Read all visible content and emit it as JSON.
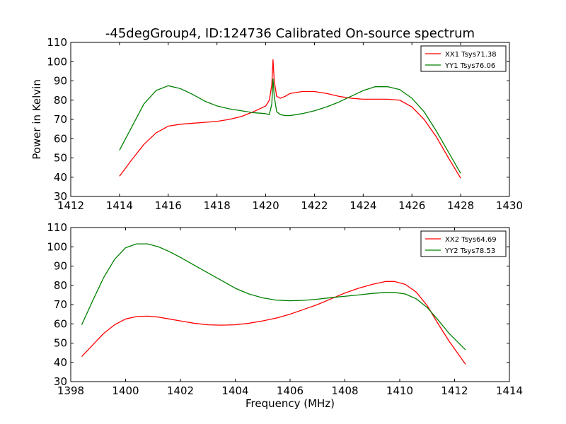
{
  "chart_data": [
    {
      "type": "line",
      "title": "-45degGroup4, ID:124736 Calibrated On-source spectrum",
      "xlabel": "",
      "ylabel": "Power in Kelvin",
      "xlim": [
        1412,
        1430
      ],
      "ylim": [
        30,
        110
      ],
      "xticks": [
        "1412",
        "1414",
        "1416",
        "1418",
        "1420",
        "1422",
        "1424",
        "1426",
        "1428",
        "1430"
      ],
      "yticks": [
        "30",
        "40",
        "50",
        "60",
        "70",
        "80",
        "90",
        "100",
        "110"
      ],
      "legend_position": "top-right",
      "series": [
        {
          "name": "XX1 Tsys71.38",
          "color": "#ff0000",
          "x": [
            1414,
            1414.5,
            1415,
            1415.5,
            1416,
            1416.5,
            1417,
            1417.5,
            1418,
            1418.5,
            1419,
            1419.5,
            1420,
            1420.15,
            1420.25,
            1420.3,
            1420.35,
            1420.45,
            1420.6,
            1420.8,
            1421,
            1421.5,
            1422,
            1422.5,
            1423,
            1423.5,
            1424,
            1424.5,
            1425,
            1425.5,
            1426,
            1426.5,
            1427,
            1427.5,
            1428
          ],
          "y": [
            40.5,
            49,
            57,
            63,
            66.5,
            67.5,
            68,
            68.5,
            69,
            70,
            71.5,
            74,
            77,
            80,
            88,
            101,
            90,
            82,
            81,
            82,
            83.5,
            84.5,
            84.5,
            83.5,
            82,
            81,
            80.5,
            80.5,
            80.5,
            80,
            76.5,
            70,
            61,
            50,
            39.5
          ]
        },
        {
          "name": "YY1 Tsys76.06",
          "color": "#008000",
          "x": [
            1414,
            1414.5,
            1415,
            1415.5,
            1416,
            1416.5,
            1417,
            1417.5,
            1418,
            1418.5,
            1419,
            1419.5,
            1420,
            1420.15,
            1420.25,
            1420.3,
            1420.35,
            1420.45,
            1420.6,
            1420.8,
            1421,
            1421.5,
            1422,
            1422.5,
            1423,
            1423.5,
            1424,
            1424.5,
            1425,
            1425.5,
            1426,
            1426.5,
            1427,
            1427.5,
            1428
          ],
          "y": [
            54,
            66,
            78,
            85,
            87.5,
            86,
            83,
            79.5,
            77,
            75.5,
            74.5,
            73.5,
            73,
            72.5,
            78,
            91,
            82,
            74,
            72.5,
            72,
            72,
            73,
            74.5,
            76.5,
            79,
            82,
            85,
            87,
            87,
            85.5,
            81,
            74,
            64,
            53,
            42
          ]
        }
      ]
    },
    {
      "type": "line",
      "title": "",
      "xlabel": "Frequency (MHz)",
      "ylabel": "",
      "xlim": [
        1398,
        1414
      ],
      "ylim": [
        30,
        110
      ],
      "xticks": [
        "1398",
        "1400",
        "1402",
        "1404",
        "1406",
        "1408",
        "1410",
        "1412",
        "1414"
      ],
      "yticks": [
        "30",
        "40",
        "50",
        "60",
        "70",
        "80",
        "90",
        "100",
        "110"
      ],
      "legend_position": "top-right",
      "series": [
        {
          "name": "XX2 Tsys64.69",
          "color": "#ff0000",
          "x": [
            1398.4,
            1398.8,
            1399.2,
            1399.6,
            1400,
            1400.4,
            1400.8,
            1401.2,
            1401.6,
            1402,
            1402.5,
            1403,
            1403.5,
            1404,
            1404.5,
            1405,
            1405.5,
            1406,
            1406.5,
            1407,
            1407.5,
            1408,
            1408.5,
            1409,
            1409.5,
            1409.8,
            1410.2,
            1410.6,
            1411,
            1411.4,
            1411.8,
            1412.4
          ],
          "y": [
            43,
            49,
            55,
            59.5,
            62.5,
            63.8,
            64,
            63.5,
            62.5,
            61.5,
            60.3,
            59.5,
            59.3,
            59.5,
            60.3,
            61.5,
            63,
            65,
            67.5,
            70,
            73,
            76,
            78.5,
            80.5,
            82,
            82,
            80.5,
            76.5,
            69.5,
            60,
            51,
            39
          ]
        },
        {
          "name": "YY2 Tsys78.53",
          "color": "#008000",
          "x": [
            1398.4,
            1398.8,
            1399.2,
            1399.6,
            1400,
            1400.4,
            1400.8,
            1401.2,
            1401.6,
            1402,
            1402.5,
            1403,
            1403.5,
            1404,
            1404.5,
            1405,
            1405.5,
            1406,
            1406.5,
            1407,
            1407.5,
            1408,
            1408.5,
            1409,
            1409.5,
            1409.8,
            1410.2,
            1410.6,
            1411,
            1411.4,
            1411.8,
            1412.4
          ],
          "y": [
            59.5,
            72,
            84,
            93.5,
            99.5,
            101.5,
            101.5,
            100,
            97.5,
            94.5,
            90.5,
            86.5,
            82.5,
            78.5,
            75.5,
            73.5,
            72.3,
            72,
            72.2,
            72.8,
            73.6,
            74.3,
            75,
            75.8,
            76.3,
            76.3,
            75.5,
            73,
            68.5,
            62,
            55,
            46.5
          ]
        }
      ]
    }
  ]
}
